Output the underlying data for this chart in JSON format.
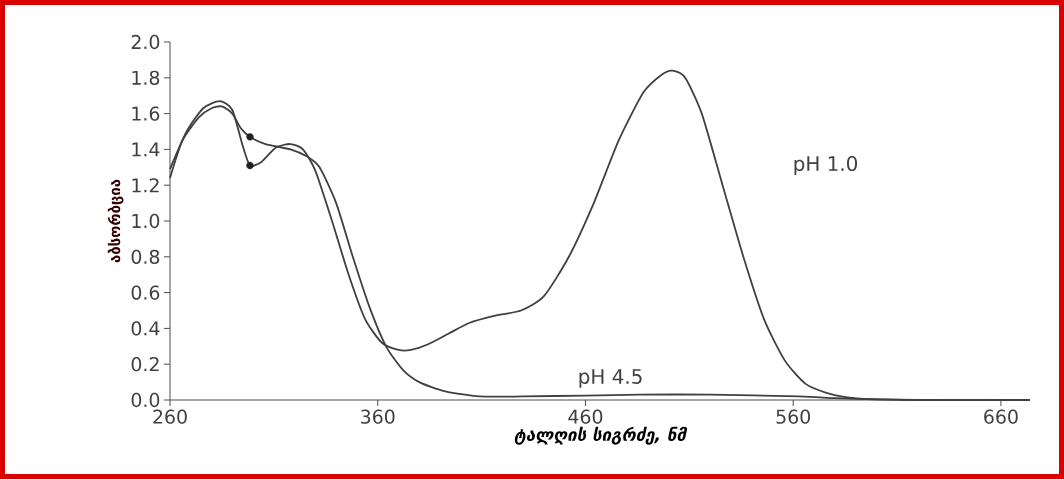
{
  "chart_data": {
    "type": "line",
    "xlabel": "ტალღის სიგრძე, ნმ",
    "ylabel": "აბსორბცია",
    "xlim": [
      260,
      674
    ],
    "ylim": [
      0,
      2.0
    ],
    "xticks": [
      260,
      360,
      460,
      560,
      660
    ],
    "yticks": [
      {
        "value": 0,
        "label": "0.0"
      },
      {
        "value": 0.2,
        "label": "0.2"
      },
      {
        "value": 0.4,
        "label": "0.4"
      },
      {
        "value": 0.6,
        "label": "0.6"
      },
      {
        "value": 0.8,
        "label": "0.8"
      },
      {
        "value": 1.0,
        "label": "1.0"
      },
      {
        "value": 1.2,
        "label": "1.2"
      },
      {
        "value": 1.4,
        "label": "1.4"
      },
      {
        "value": 1.6,
        "label": "1.6"
      },
      {
        "value": 1.8,
        "label": "1.8"
      },
      {
        "value": 2.0,
        "label": "2.0"
      }
    ],
    "grid": false,
    "line_style": "solid",
    "marker": "none",
    "series": [
      {
        "color": "#404040",
        "x": [
          260,
          268,
          276,
          284,
          290,
          295,
          298.5,
          304,
          311,
          318,
          324,
          330,
          338,
          346,
          354,
          362,
          370,
          376,
          384,
          394,
          404,
          416,
          429,
          440,
          452,
          464,
          476,
          488,
          497,
          502,
          508,
          516,
          526,
          536,
          546,
          556,
          566,
          576,
          586,
          597,
          620,
          674
        ],
        "values": [
          1.29,
          1.5,
          1.63,
          1.67,
          1.62,
          1.42,
          1.31,
          1.33,
          1.41,
          1.43,
          1.4,
          1.28,
          1.0,
          0.7,
          0.45,
          0.32,
          0.28,
          0.28,
          0.31,
          0.37,
          0.43,
          0.47,
          0.5,
          0.58,
          0.8,
          1.1,
          1.45,
          1.72,
          1.82,
          1.84,
          1.8,
          1.6,
          1.2,
          0.8,
          0.45,
          0.22,
          0.09,
          0.04,
          0.015,
          0.005,
          0,
          0
        ]
      },
      {
        "color": "#404040",
        "x": [
          260,
          266,
          274,
          280,
          285,
          290,
          294,
          298.5,
          306,
          318,
          326,
          332,
          340,
          348,
          356,
          364,
          372,
          380,
          392,
          409,
          430,
          460,
          486,
          520,
          563,
          580,
          600,
          620,
          674
        ],
        "values": [
          1.24,
          1.45,
          1.58,
          1.63,
          1.64,
          1.6,
          1.52,
          1.47,
          1.43,
          1.4,
          1.36,
          1.3,
          1.1,
          0.8,
          0.52,
          0.3,
          0.17,
          0.1,
          0.05,
          0.02,
          0.02,
          0.025,
          0.03,
          0.03,
          0.02,
          0.01,
          0.003,
          0,
          0
        ]
      },
      {
        "type": "scatter",
        "marker": "circle",
        "color": "#202020",
        "x": [
          298.5,
          298.5
        ],
        "values": [
          1.47,
          1.31
        ]
      }
    ],
    "annotations": [
      "pH 1.0",
      "pH 4.5"
    ]
  }
}
